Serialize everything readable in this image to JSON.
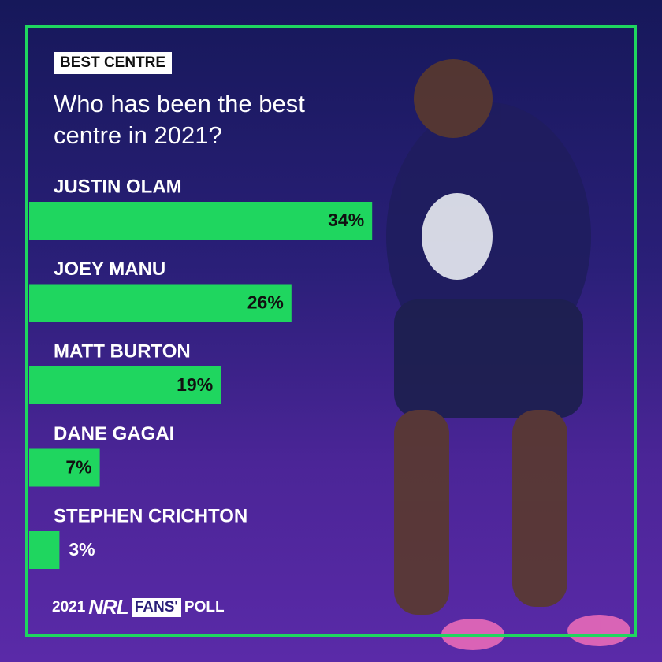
{
  "tag": "BEST CENTRE",
  "chart_data": {
    "type": "bar",
    "title": "Who has been the best centre in 2021?",
    "categories": [
      "JUSTIN OLAM",
      "JOEY MANU",
      "MATT BURTON",
      "DANE GAGAI",
      "STEPHEN CRICHTON"
    ],
    "values": [
      34,
      26,
      19,
      7,
      3
    ],
    "value_labels": [
      "34%",
      "26%",
      "19%",
      "7%",
      "3%"
    ],
    "color": "#1fd65f"
  },
  "footer": {
    "year": "2021",
    "brand": "NRL",
    "badge": "FANS'",
    "label": "POLL"
  }
}
